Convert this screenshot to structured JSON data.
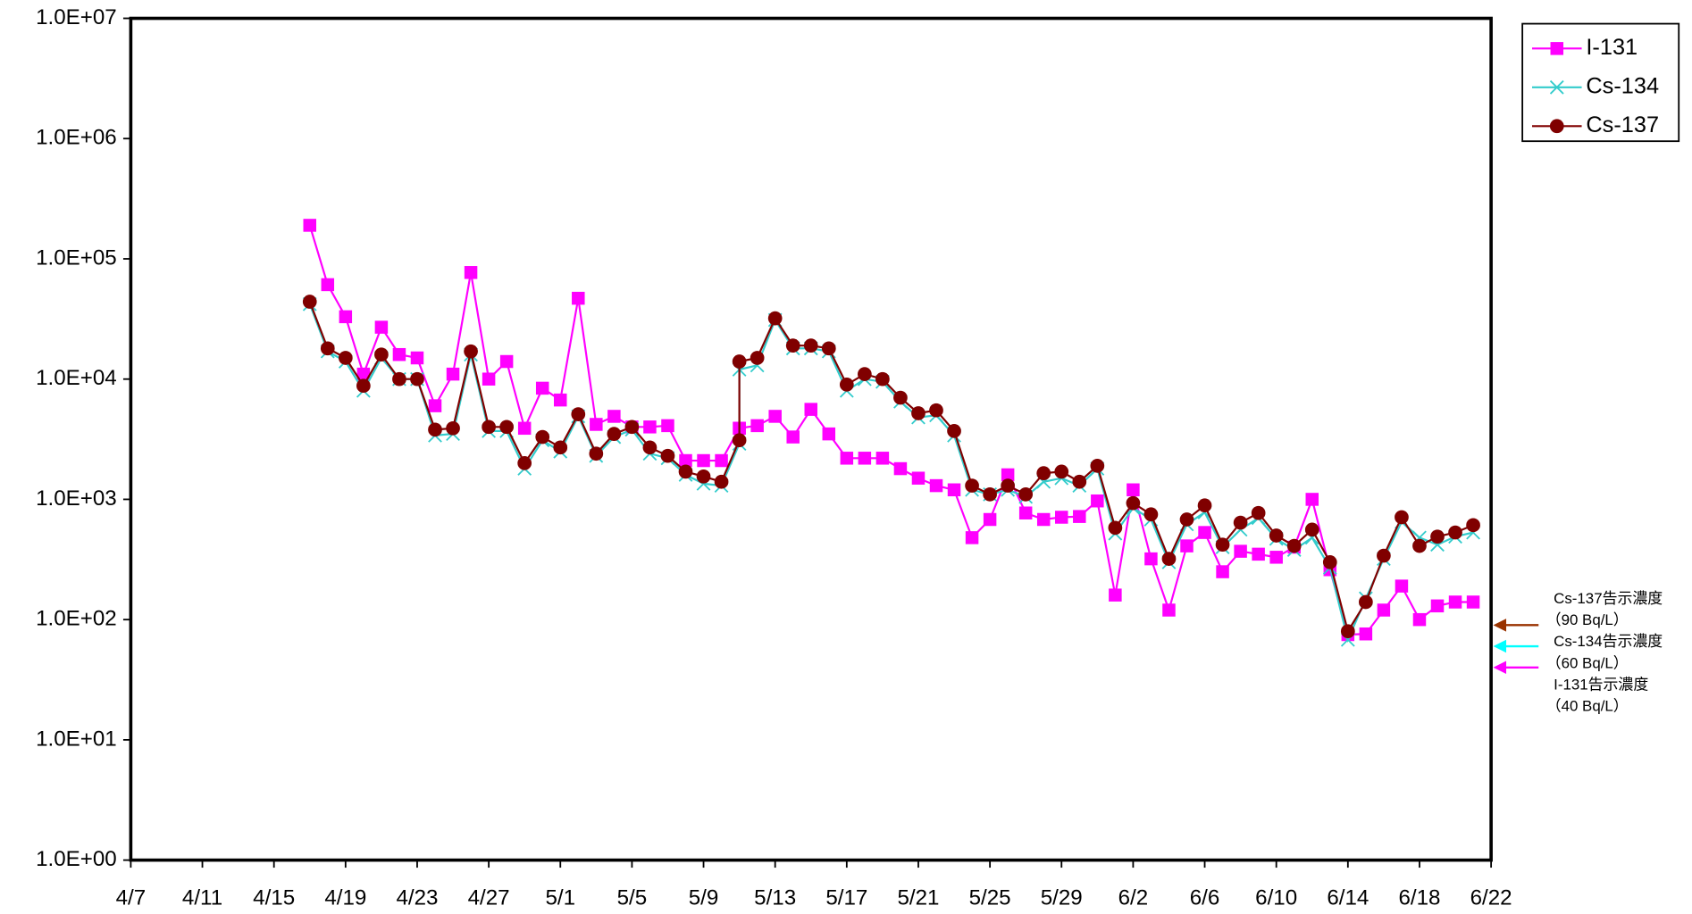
{
  "chart_data": {
    "type": "line",
    "log_scale": "y",
    "grid": true,
    "legend": "top-right",
    "xlim": [
      "4/7",
      "6/22"
    ],
    "xticks": [
      "4/7",
      "4/11",
      "4/15",
      "4/19",
      "4/23",
      "4/27",
      "5/1",
      "5/5",
      "5/9",
      "5/13",
      "5/17",
      "5/21",
      "5/25",
      "5/29",
      "6/2",
      "6/6",
      "6/10",
      "6/14",
      "6/18",
      "6/22"
    ],
    "ylim": [
      1,
      10000000
    ],
    "yticks": [
      {
        "value": 1,
        "label": "1.0E+00"
      },
      {
        "value": 10,
        "label": "1.0E+01"
      },
      {
        "value": 100,
        "label": "1.0E+02"
      },
      {
        "value": 1000,
        "label": "1.0E+03"
      },
      {
        "value": 10000,
        "label": "1.0E+04"
      },
      {
        "value": 100000,
        "label": "1.0E+05"
      },
      {
        "value": 1000000,
        "label": "1.0E+06"
      },
      {
        "value": 10000000,
        "label": "1.0E+07"
      }
    ],
    "x": [
      "4/17",
      "4/18",
      "4/19",
      "4/20",
      "4/21",
      "4/22",
      "4/23",
      "4/24",
      "4/25",
      "4/26",
      "4/27",
      "4/28",
      "4/29",
      "4/30",
      "5/1",
      "5/2",
      "5/3",
      "5/4",
      "5/5",
      "5/6",
      "5/7",
      "5/8",
      "5/9",
      "5/10",
      "5/11",
      "5/11",
      "5/12",
      "5/13",
      "5/14",
      "5/15",
      "5/16",
      "5/17",
      "5/18",
      "5/19",
      "5/20",
      "5/21",
      "5/22",
      "5/23",
      "5/24",
      "5/25",
      "5/26",
      "5/27",
      "5/28",
      "5/29",
      "5/30",
      "5/31",
      "6/1",
      "6/2",
      "6/3",
      "6/4",
      "6/5",
      "6/6",
      "6/7",
      "6/8",
      "6/9",
      "6/10",
      "6/11",
      "6/12",
      "6/13",
      "6/14",
      "6/15",
      "6/16",
      "6/17",
      "6/18",
      "6/19",
      "6/20",
      "6/21"
    ],
    "series": [
      {
        "name": "I-131",
        "color": "#ff00ff",
        "marker": "square",
        "values": [
          190000,
          61000,
          33000,
          11000,
          27000,
          16000,
          15000,
          6000,
          11000,
          77000,
          10000,
          14000,
          3900,
          8400,
          6700,
          47000,
          4200,
          4900,
          4000,
          4000,
          4100,
          2100,
          2100,
          2100,
          3900,
          3900,
          4100,
          4900,
          3300,
          5600,
          3500,
          2200,
          2200,
          2200,
          1800,
          1500,
          1300,
          1200,
          480,
          680,
          1600,
          770,
          680,
          710,
          720,
          970,
          160,
          1200,
          320,
          120,
          410,
          530,
          250,
          370,
          350,
          330,
          400,
          1000,
          260,
          75,
          76,
          120,
          190,
          100,
          130,
          140,
          140
        ]
      },
      {
        "name": "Cs-134",
        "color": "#33cccc",
        "marker": "x",
        "values": [
          42000,
          17000,
          14000,
          8000,
          15000,
          10000,
          10000,
          3400,
          3500,
          16000,
          3700,
          3700,
          1800,
          3100,
          2500,
          4900,
          2300,
          3300,
          3800,
          2400,
          2200,
          1600,
          1350,
          1300,
          2900,
          12000,
          13000,
          31000,
          18000,
          18000,
          17000,
          8000,
          10000,
          9500,
          6500,
          4800,
          5000,
          3400,
          1200,
          1100,
          1200,
          1050,
          1400,
          1500,
          1300,
          1800,
          520,
          850,
          680,
          300,
          620,
          780,
          400,
          560,
          700,
          470,
          380,
          480,
          270,
          68,
          150,
          320,
          650,
          480,
          420,
          490,
          530
        ]
      },
      {
        "name": "Cs-137",
        "color": "#800000",
        "marker": "circle",
        "values": [
          44000,
          18000,
          15000,
          8800,
          16000,
          10000,
          10000,
          3800,
          3900,
          17000,
          4000,
          4000,
          2000,
          3300,
          2700,
          5100,
          2400,
          3500,
          4000,
          2700,
          2300,
          1700,
          1550,
          1400,
          3100,
          14000,
          15000,
          32000,
          19000,
          19000,
          18000,
          9000,
          11000,
          10000,
          7000,
          5200,
          5500,
          3700,
          1300,
          1100,
          1300,
          1100,
          1650,
          1700,
          1400,
          1900,
          580,
          930,
          750,
          320,
          680,
          890,
          420,
          640,
          770,
          500,
          410,
          560,
          300,
          80,
          140,
          340,
          710,
          410,
          490,
          530,
          610
        ]
      }
    ],
    "reference_levels": [
      {
        "label": "Cs-137告示濃度",
        "note": "（90  Bq/L）",
        "value": 90,
        "color": "#993300"
      },
      {
        "label": "Cs-134告示濃度",
        "note": "（60  Bq/L）",
        "value": 60,
        "color": "#00ffff"
      },
      {
        "label": "I-131告示濃度",
        "note": "（40  Bq/L）",
        "value": 40,
        "color": "#ff00ff"
      }
    ]
  }
}
